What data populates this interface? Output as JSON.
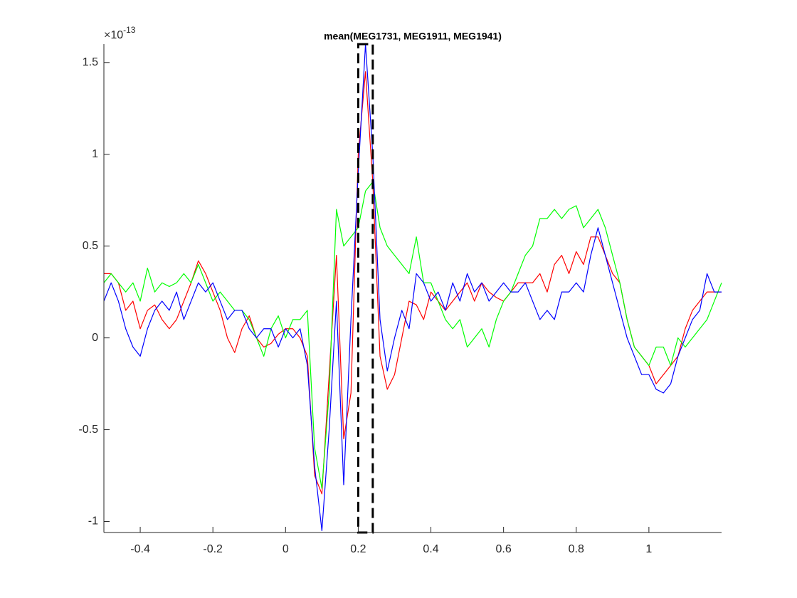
{
  "chart_data": {
    "type": "line",
    "title": "mean(MEG1731, MEG1911, MEG1941)",
    "y_multiplier": "×10",
    "y_exponent": "-13",
    "x": [
      -0.5,
      -0.48,
      -0.46,
      -0.44,
      -0.42,
      -0.4,
      -0.38,
      -0.36,
      -0.34,
      -0.32,
      -0.3,
      -0.28,
      -0.26,
      -0.24,
      -0.22,
      -0.2,
      -0.18,
      -0.16,
      -0.14,
      -0.12,
      -0.1,
      -0.08,
      -0.06,
      -0.04,
      -0.02,
      0,
      0.02,
      0.04,
      0.06,
      0.08,
      0.1,
      0.12,
      0.14,
      0.16,
      0.18,
      0.2,
      0.22,
      0.24,
      0.26,
      0.28,
      0.3,
      0.32,
      0.34,
      0.36,
      0.38,
      0.4,
      0.42,
      0.44,
      0.46,
      0.48,
      0.5,
      0.52,
      0.54,
      0.56,
      0.58,
      0.6,
      0.62,
      0.64,
      0.66,
      0.68,
      0.7,
      0.72,
      0.74,
      0.76,
      0.78,
      0.8,
      0.82,
      0.84,
      0.86,
      0.88,
      0.9,
      0.92,
      0.94,
      0.96,
      0.98,
      1,
      1.02,
      1.04,
      1.06,
      1.08,
      1.1,
      1.12,
      1.14,
      1.16,
      1.18,
      1.2
    ],
    "series": [
      {
        "color": "#ff0000",
        "values": [
          0.35,
          0.35,
          0.3,
          0.15,
          0.2,
          0.05,
          0.15,
          0.18,
          0.1,
          0.05,
          0.1,
          0.2,
          0.3,
          0.42,
          0.35,
          0.25,
          0.15,
          0.0,
          -0.08,
          0.05,
          0.12,
          0.0,
          -0.05,
          -0.03,
          0.02,
          0.05,
          0.05,
          0.0,
          -0.1,
          -0.75,
          -0.85,
          -0.2,
          0.45,
          -0.55,
          -0.3,
          1.0,
          1.45,
          0.85,
          -0.1,
          -0.28,
          -0.2,
          0.0,
          0.2,
          0.18,
          0.1,
          0.25,
          0.2,
          0.15,
          0.2,
          0.25,
          0.3,
          0.2,
          0.3,
          0.25,
          0.22,
          0.2,
          0.25,
          0.3,
          0.3,
          0.3,
          0.35,
          0.25,
          0.4,
          0.45,
          0.35,
          0.47,
          0.4,
          0.55,
          0.55,
          0.45,
          0.35,
          0.3,
          0.1,
          -0.05,
          -0.1,
          -0.15,
          -0.25,
          -0.2,
          -0.15,
          -0.1,
          0.05,
          0.15,
          0.2,
          0.25,
          0.25,
          0.25
        ]
      },
      {
        "color": "#00ff00",
        "values": [
          0.3,
          0.35,
          0.3,
          0.25,
          0.3,
          0.2,
          0.38,
          0.25,
          0.3,
          0.28,
          0.3,
          0.35,
          0.3,
          0.4,
          0.3,
          0.2,
          0.25,
          0.2,
          0.15,
          0.15,
          0.1,
          0.0,
          -0.1,
          0.05,
          0.12,
          0.0,
          0.1,
          0.1,
          0.15,
          -0.6,
          -0.82,
          -0.3,
          0.7,
          0.5,
          0.55,
          0.6,
          0.8,
          0.85,
          0.6,
          0.5,
          0.45,
          0.4,
          0.35,
          0.55,
          0.3,
          0.3,
          0.2,
          0.1,
          0.05,
          0.1,
          -0.05,
          0.0,
          0.05,
          -0.05,
          0.1,
          0.2,
          0.25,
          0.35,
          0.45,
          0.5,
          0.65,
          0.65,
          0.7,
          0.65,
          0.7,
          0.72,
          0.6,
          0.65,
          0.7,
          0.6,
          0.45,
          0.3,
          0.1,
          -0.05,
          -0.1,
          -0.15,
          -0.05,
          -0.05,
          -0.15,
          0.0,
          -0.05,
          0.0,
          0.05,
          0.1,
          0.2,
          0.3
        ]
      },
      {
        "color": "#0000ff",
        "values": [
          0.2,
          0.3,
          0.2,
          0.05,
          -0.05,
          -0.1,
          0.05,
          0.15,
          0.2,
          0.15,
          0.25,
          0.1,
          0.2,
          0.3,
          0.25,
          0.3,
          0.2,
          0.1,
          0.15,
          0.15,
          0.05,
          0.0,
          0.05,
          0.05,
          -0.05,
          0.05,
          0.0,
          0.05,
          -0.15,
          -0.7,
          -1.05,
          -0.5,
          0.2,
          -0.8,
          0.1,
          0.9,
          1.6,
          1.0,
          0.1,
          -0.18,
          0.0,
          0.15,
          0.05,
          0.35,
          0.3,
          0.2,
          0.25,
          0.15,
          0.3,
          0.2,
          0.35,
          0.25,
          0.3,
          0.2,
          0.25,
          0.3,
          0.25,
          0.25,
          0.3,
          0.2,
          0.1,
          0.15,
          0.1,
          0.25,
          0.25,
          0.3,
          0.25,
          0.45,
          0.6,
          0.45,
          0.3,
          0.15,
          0.0,
          -0.1,
          -0.2,
          -0.2,
          -0.28,
          -0.3,
          -0.25,
          -0.1,
          0.0,
          0.1,
          0.15,
          0.35,
          0.25,
          0.25
        ]
      }
    ],
    "highlight": {
      "x": [
        0.2,
        0.24
      ]
    },
    "xlim": [
      -0.5,
      1.2
    ],
    "ylim": [
      -1.06,
      1.6
    ],
    "xticks": [
      -0.4,
      -0.2,
      0,
      0.2,
      0.4,
      0.6,
      0.8,
      1
    ],
    "yticks": [
      -1,
      -0.5,
      0,
      0.5,
      1,
      1.5
    ]
  }
}
